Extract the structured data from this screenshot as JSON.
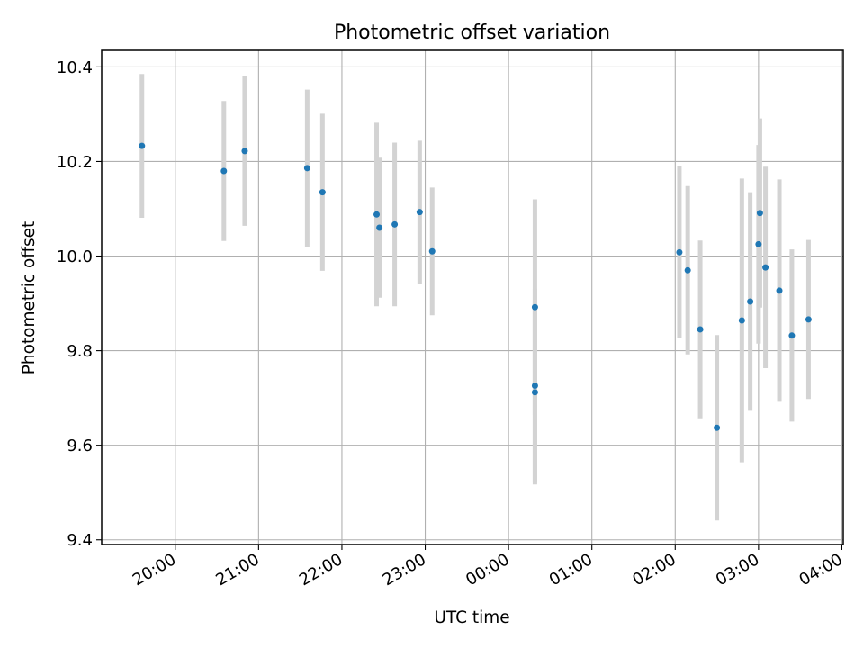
{
  "chart_data": {
    "type": "scatter",
    "title": "Photometric offset variation",
    "xlabel": "UTC time",
    "ylabel": "Photometric offset",
    "x_axis": "time",
    "x_ticks": [
      "20:00",
      "21:00",
      "22:00",
      "23:00",
      "00:00",
      "01:00",
      "02:00",
      "03:00",
      "04:00"
    ],
    "x_range": [
      "19:07",
      "04:01"
    ],
    "ylim": [
      9.39,
      10.435
    ],
    "y_ticks": [
      "9.4",
      "9.6",
      "9.8",
      "10.0",
      "10.2",
      "10.4"
    ],
    "grid": true,
    "marker_color": "#1f77b4",
    "errorbar_color": "#d3d3d3",
    "series": [
      {
        "points": [
          {
            "x": "19:36",
            "y": 10.233,
            "err": 0.152
          },
          {
            "x": "20:35",
            "y": 10.18,
            "err": 0.148
          },
          {
            "x": "20:50",
            "y": 10.222,
            "err": 0.158
          },
          {
            "x": "21:35",
            "y": 10.186,
            "err": 0.166
          },
          {
            "x": "21:46",
            "y": 10.135,
            "err": 0.166
          },
          {
            "x": "22:25",
            "y": 10.088,
            "err": 0.194
          },
          {
            "x": "22:27",
            "y": 10.06,
            "err": 0.148
          },
          {
            "x": "22:38",
            "y": 10.067,
            "err": 0.173
          },
          {
            "x": "22:56",
            "y": 10.093,
            "err": 0.151
          },
          {
            "x": "23:05",
            "y": 10.01,
            "err": 0.135
          },
          {
            "x": "00:19",
            "y": 9.892,
            "err": 0.228
          },
          {
            "x": "00:19",
            "y": 9.726,
            "err": 0.205
          },
          {
            "x": "00:19",
            "y": 9.712,
            "err": 0.195
          },
          {
            "x": "02:03",
            "y": 10.008,
            "err": 0.182
          },
          {
            "x": "02:09",
            "y": 9.97,
            "err": 0.178
          },
          {
            "x": "02:18",
            "y": 9.845,
            "err": 0.188
          },
          {
            "x": "02:30",
            "y": 9.637,
            "err": 0.196
          },
          {
            "x": "02:48",
            "y": 9.864,
            "err": 0.3
          },
          {
            "x": "02:54",
            "y": 9.904,
            "err": 0.231
          },
          {
            "x": "03:00",
            "y": 10.025,
            "err": 0.21
          },
          {
            "x": "03:01",
            "y": 10.091,
            "err": 0.2
          },
          {
            "x": "03:05",
            "y": 9.976,
            "err": 0.213
          },
          {
            "x": "03:15",
            "y": 9.927,
            "err": 0.235
          },
          {
            "x": "03:24",
            "y": 9.832,
            "err": 0.182
          },
          {
            "x": "03:36",
            "y": 9.866,
            "err": 0.168
          }
        ]
      }
    ]
  }
}
